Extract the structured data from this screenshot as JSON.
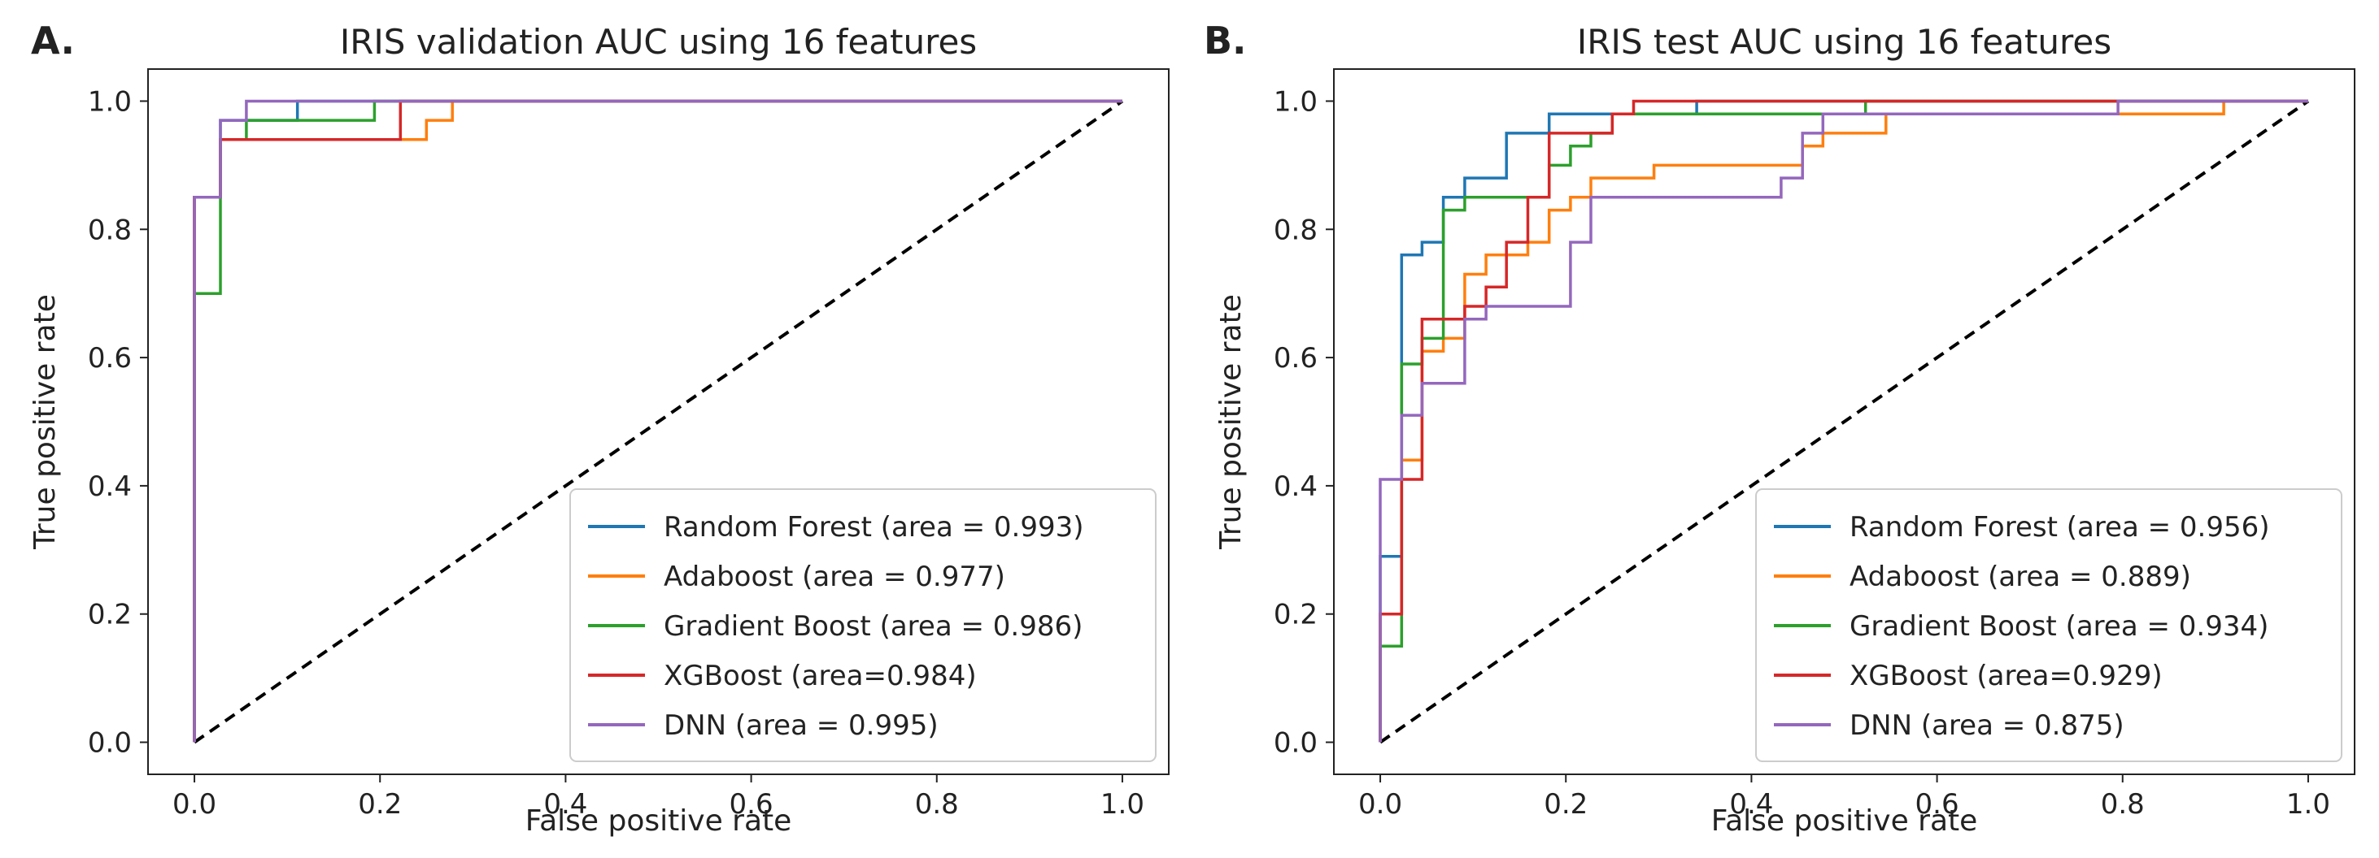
{
  "chart_data": [
    {
      "type": "line",
      "panel_label": "A.",
      "title": "IRIS validation AUC using 16 features",
      "xlabel": "False positive rate",
      "ylabel": "True positive rate",
      "xlim": [
        -0.05,
        1.05
      ],
      "ylim": [
        -0.05,
        1.05
      ],
      "xticks": [
        "0.0",
        "0.2",
        "0.4",
        "0.6",
        "0.8",
        "1.0"
      ],
      "yticks": [
        "0.0",
        "0.2",
        "0.4",
        "0.6",
        "0.8",
        "1.0"
      ],
      "legend_position": "lower-right",
      "grid": false,
      "baseline": {
        "x": [
          0,
          1
        ],
        "y": [
          0,
          1
        ],
        "style": "dashed",
        "color": "#000000"
      },
      "series": [
        {
          "name": "Random Forest (area = 0.993)",
          "color": "#1f77b4",
          "x": [
            0,
            0,
            0.028,
            0.028,
            0.111,
            0.111,
            1
          ],
          "y": [
            0,
            0.85,
            0.85,
            0.97,
            0.97,
            1.0,
            1.0
          ]
        },
        {
          "name": "Adaboost (area = 0.977)",
          "color": "#ff7f0e",
          "x": [
            0,
            0,
            0.028,
            0.028,
            0.25,
            0.25,
            0.278,
            0.278,
            1
          ],
          "y": [
            0,
            0.85,
            0.85,
            0.94,
            0.94,
            0.97,
            0.97,
            1.0,
            1.0
          ]
        },
        {
          "name": "Gradient Boost (area = 0.986)",
          "color": "#2ca02c",
          "x": [
            0,
            0,
            0.028,
            0.028,
            0.056,
            0.056,
            0.194,
            0.194,
            1
          ],
          "y": [
            0,
            0.7,
            0.7,
            0.94,
            0.94,
            0.97,
            0.97,
            1.0,
            1.0
          ]
        },
        {
          "name": "XGBoost (area=0.984)",
          "color": "#d62728",
          "x": [
            0,
            0,
            0.028,
            0.028,
            0.222,
            0.222,
            1
          ],
          "y": [
            0,
            0.85,
            0.85,
            0.94,
            0.94,
            1.0,
            1.0
          ]
        },
        {
          "name": "DNN (area = 0.995)",
          "color": "#9467bd",
          "x": [
            0,
            0,
            0.028,
            0.028,
            0.056,
            0.056,
            1
          ],
          "y": [
            0,
            0.85,
            0.85,
            0.97,
            0.97,
            1.0,
            1.0
          ]
        }
      ]
    },
    {
      "type": "line",
      "panel_label": "B.",
      "title": "IRIS test AUC using 16 features",
      "xlabel": "False positive rate",
      "ylabel": "True positive rate",
      "xlim": [
        -0.05,
        1.05
      ],
      "ylim": [
        -0.05,
        1.05
      ],
      "xticks": [
        "0.0",
        "0.2",
        "0.4",
        "0.6",
        "0.8",
        "1.0"
      ],
      "yticks": [
        "0.0",
        "0.2",
        "0.4",
        "0.6",
        "0.8",
        "1.0"
      ],
      "legend_position": "lower-right",
      "grid": false,
      "baseline": {
        "x": [
          0,
          1
        ],
        "y": [
          0,
          1
        ],
        "style": "dashed",
        "color": "#000000"
      },
      "series": [
        {
          "name": "Random Forest (area = 0.956)",
          "color": "#1f77b4",
          "x": [
            0,
            0,
            0.023,
            0.023,
            0.045,
            0.045,
            0.068,
            0.068,
            0.091,
            0.091,
            0.136,
            0.136,
            0.182,
            0.182,
            0.341,
            0.341,
            1
          ],
          "y": [
            0,
            0.29,
            0.29,
            0.76,
            0.76,
            0.78,
            0.78,
            0.85,
            0.85,
            0.88,
            0.88,
            0.95,
            0.95,
            0.98,
            0.98,
            1.0,
            1.0
          ]
        },
        {
          "name": "Adaboost (area = 0.889)",
          "color": "#ff7f0e",
          "x": [
            0,
            0,
            0.023,
            0.023,
            0.045,
            0.045,
            0.068,
            0.068,
            0.091,
            0.091,
            0.114,
            0.114,
            0.159,
            0.159,
            0.182,
            0.182,
            0.205,
            0.205,
            0.227,
            0.227,
            0.295,
            0.295,
            0.364,
            0.364,
            0.455,
            0.455,
            0.477,
            0.477,
            0.545,
            0.545,
            0.909,
            0.909,
            1
          ],
          "y": [
            0,
            0.2,
            0.2,
            0.44,
            0.44,
            0.61,
            0.61,
            0.63,
            0.63,
            0.73,
            0.73,
            0.76,
            0.76,
            0.78,
            0.78,
            0.83,
            0.83,
            0.85,
            0.85,
            0.88,
            0.88,
            0.9,
            0.9,
            0.9,
            0.9,
            0.93,
            0.93,
            0.95,
            0.95,
            0.98,
            0.98,
            1.0,
            1.0
          ]
        },
        {
          "name": "Gradient Boost (area = 0.934)",
          "color": "#2ca02c",
          "x": [
            0,
            0,
            0.023,
            0.023,
            0.045,
            0.045,
            0.068,
            0.068,
            0.091,
            0.091,
            0.182,
            0.182,
            0.205,
            0.205,
            0.227,
            0.227,
            0.25,
            0.25,
            0.523,
            0.523,
            1
          ],
          "y": [
            0,
            0.15,
            0.15,
            0.59,
            0.59,
            0.63,
            0.63,
            0.83,
            0.83,
            0.85,
            0.85,
            0.9,
            0.9,
            0.93,
            0.93,
            0.95,
            0.95,
            0.98,
            0.98,
            1.0,
            1.0
          ]
        },
        {
          "name": "XGBoost (area=0.929)",
          "color": "#d62728",
          "x": [
            0,
            0,
            0.023,
            0.023,
            0.045,
            0.045,
            0.091,
            0.091,
            0.114,
            0.114,
            0.136,
            0.136,
            0.159,
            0.159,
            0.182,
            0.182,
            0.25,
            0.25,
            0.273,
            0.273,
            1
          ],
          "y": [
            0,
            0.2,
            0.2,
            0.41,
            0.41,
            0.66,
            0.66,
            0.68,
            0.68,
            0.71,
            0.71,
            0.78,
            0.78,
            0.85,
            0.85,
            0.95,
            0.95,
            0.98,
            0.98,
            1.0,
            1.0
          ]
        },
        {
          "name": "DNN (area = 0.875)",
          "color": "#9467bd",
          "x": [
            0,
            0,
            0.023,
            0.023,
            0.045,
            0.045,
            0.091,
            0.091,
            0.114,
            0.114,
            0.205,
            0.205,
            0.227,
            0.227,
            0.364,
            0.364,
            0.432,
            0.432,
            0.455,
            0.455,
            0.477,
            0.477,
            0.795,
            0.795,
            1
          ],
          "y": [
            0,
            0.41,
            0.41,
            0.51,
            0.51,
            0.56,
            0.56,
            0.66,
            0.66,
            0.68,
            0.68,
            0.78,
            0.78,
            0.85,
            0.85,
            0.85,
            0.85,
            0.88,
            0.88,
            0.95,
            0.95,
            0.98,
            0.98,
            1.0,
            1.0
          ]
        }
      ]
    }
  ]
}
